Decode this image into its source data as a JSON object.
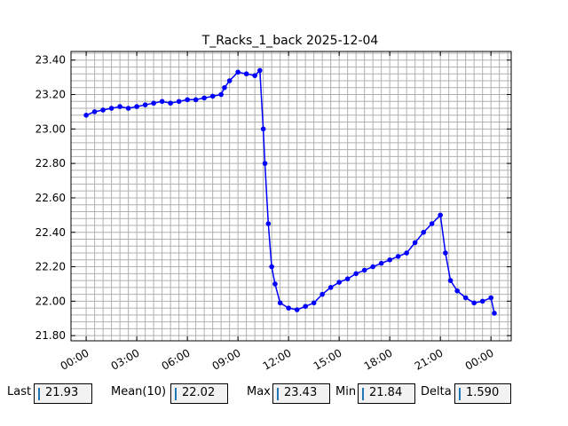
{
  "chart_data": {
    "type": "line",
    "title": "T_Racks_1_back 2025-12-04",
    "xlabel": "",
    "ylabel": "",
    "x_ticks": [
      "00:00",
      "03:00",
      "06:00",
      "09:00",
      "12:00",
      "15:00",
      "18:00",
      "21:00",
      "00:00"
    ],
    "y_ticks": [
      "21.80",
      "22.00",
      "22.20",
      "22.40",
      "22.60",
      "22.80",
      "23.00",
      "23.20",
      "23.40"
    ],
    "xlim_hours": [
      -0.9,
      25.2
    ],
    "ylim": [
      21.77,
      23.45
    ],
    "grid": true,
    "series_color": "#0000ff",
    "series": [
      {
        "x_hours": [
          0,
          0.5,
          1,
          1.5,
          2,
          2.5,
          3,
          3.5,
          4,
          4.5,
          5,
          5.5,
          6,
          6.5,
          7,
          7.5,
          8,
          8.2,
          8.5,
          9,
          9.5,
          10,
          10.3,
          10.5,
          10.6,
          10.8,
          11,
          11.2,
          11.5,
          12,
          12.5,
          13,
          13.5,
          14,
          14.5,
          15,
          15.5,
          16,
          16.5,
          17,
          17.5,
          18,
          18.5,
          19,
          19.5,
          20,
          20.5,
          21,
          21.3,
          21.6,
          22,
          22.5,
          23,
          23.5,
          24,
          24.2
        ],
        "values": [
          23.08,
          23.1,
          23.11,
          23.12,
          23.13,
          23.12,
          23.13,
          23.14,
          23.15,
          23.16,
          23.15,
          23.16,
          23.17,
          23.17,
          23.18,
          23.19,
          23.2,
          23.24,
          23.28,
          23.33,
          23.32,
          23.31,
          23.34,
          23.0,
          22.8,
          22.45,
          22.2,
          22.1,
          21.99,
          21.96,
          21.95,
          21.97,
          21.99,
          22.04,
          22.08,
          22.11,
          22.13,
          22.16,
          22.18,
          22.2,
          22.22,
          22.24,
          22.26,
          22.28,
          22.34,
          22.4,
          22.45,
          22.5,
          22.28,
          22.12,
          22.06,
          22.02,
          21.99,
          22.0,
          22.02,
          21.93
        ]
      }
    ]
  },
  "stats": {
    "last_label": "Last",
    "last_value": "21.93",
    "mean_label": "Mean(10)",
    "mean_value": "22.02",
    "max_label": "Max",
    "max_value": "23.43",
    "min_label": "Min",
    "min_value": "21.84",
    "delta_label": "Delta",
    "delta_value": "1.590"
  }
}
